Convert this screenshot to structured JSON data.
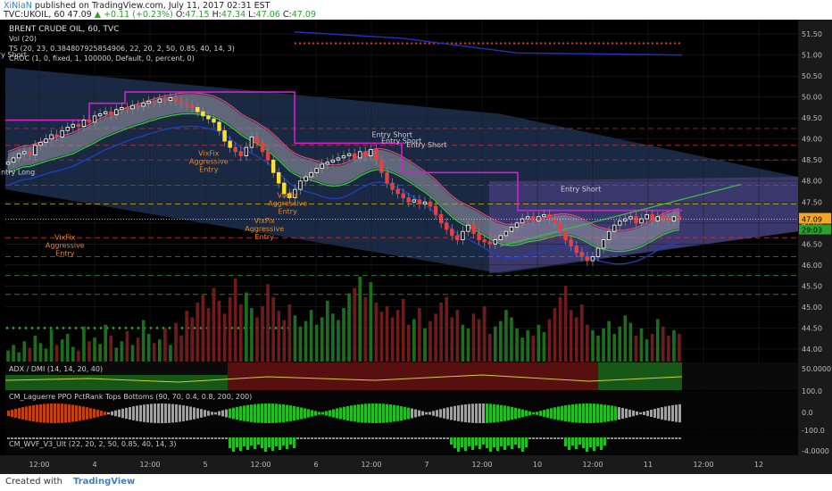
{
  "header": {
    "author": "XiNiaN",
    "published": "published on TradingView.com, July 11, 2017 02:31 EST",
    "symbol": "TVC:UKOIL, 60",
    "last": "47.09",
    "change": "▲ +0.11 (+0.23%)",
    "o_label": "O:",
    "o": "47.15",
    "h_label": "H:",
    "h": "47.34",
    "l_label": "L:",
    "l": "47.06",
    "c_label": "C:",
    "c": "47.09"
  },
  "legend": {
    "title": "BRENT CRUDE OIL, 60, TVC",
    "vol": "Vol (20)",
    "ts": "TS (20, 23, 0.38480792585490​6, 22, 20, 2, 50, 0.85, 40, 14, 3)",
    "croc": "CROC (1, 0, fixed, 1, 100000, Default, 0, percent, 0)"
  },
  "annotations": [
    {
      "text": "Entry Short",
      "x": "3 06:00",
      "y": 50.95,
      "color": "#d0d0d0"
    },
    {
      "text": "Entry Long",
      "x": "3 08:00",
      "y": 48.15,
      "color": "#d0d0d0"
    },
    {
      "text": "Entry Short",
      "x": "6 21:00",
      "y": 49.05,
      "color": "#d0d0d0"
    },
    {
      "text": "Entry Short",
      "x": "6 23:00",
      "y": 48.9,
      "color": "#d0d0d0"
    },
    {
      "text": "Entry Short",
      "x": "7 04:00",
      "y": 48.8,
      "color": "#d0d0d0"
    },
    {
      "text": "Entry Short",
      "x": "10 13:00",
      "y": 47.75,
      "color": "#d0d0d0"
    },
    {
      "text": "VixFix Aggressive Entry",
      "x": "5 04:00",
      "y": 48.6,
      "color": "#e8871e"
    },
    {
      "text": "VixFix Aggressive Entry",
      "x": "5 21:00",
      "y": 47.6,
      "color": "#e8871e"
    },
    {
      "text": "VixFix Aggressive Entry",
      "x": "5 16:00",
      "y": 47.0,
      "color": "#e8871e"
    },
    {
      "text": "VixFix Aggressive Entry",
      "x": "9 14:00",
      "y": 46.6,
      "color": "#e8871e"
    }
  ],
  "chart_data": {
    "type": "candlestick",
    "title": "BRENT CRUDE OIL, 60, TVC",
    "price_axis": {
      "ticks": [
        "51.50",
        "51.00",
        "50.50",
        "50.00",
        "49.50",
        "49.00",
        "48.50",
        "48.00",
        "47.50",
        "47.00",
        "46.50",
        "46.00",
        "45.50",
        "45.00",
        "44.50",
        "44.00"
      ],
      "ylim": [
        43.7,
        51.8
      ]
    },
    "current_price": "47.09",
    "countdown": "29:03",
    "time_axis": {
      "ticks": [
        "12:00",
        "4",
        "12:00",
        "5",
        "12:00",
        "6",
        "12:00",
        "7",
        "12:00",
        "10",
        "12:00",
        "11",
        "12:00",
        "12"
      ]
    },
    "series": [
      {
        "name": "close",
        "values": [
          48.45,
          48.55,
          48.65,
          48.7,
          48.62,
          48.85,
          48.92,
          49.0,
          49.1,
          49.05,
          49.2,
          49.28,
          49.35,
          49.3,
          49.45,
          49.4,
          49.55,
          49.6,
          49.65,
          49.58,
          49.7,
          49.75,
          49.72,
          49.8,
          49.78,
          49.85,
          49.9,
          49.88,
          49.95,
          49.92,
          49.98,
          49.9,
          49.85,
          49.8,
          49.75,
          49.65,
          49.55,
          49.48,
          49.4,
          49.2,
          48.95,
          48.8,
          48.7,
          48.6,
          48.8,
          49.05,
          48.9,
          48.7,
          48.5,
          48.2,
          47.95,
          47.7,
          47.6,
          47.8,
          48.0,
          48.1,
          48.2,
          48.3,
          48.4,
          48.45,
          48.5,
          48.55,
          48.6,
          48.65,
          48.55,
          48.7,
          48.6,
          48.75,
          48.5,
          48.2,
          47.95,
          47.8,
          47.7,
          47.6,
          47.5,
          47.55,
          47.45,
          47.5,
          47.4,
          47.2,
          47.0,
          46.85,
          46.7,
          46.6,
          46.8,
          46.95,
          46.75,
          46.6,
          46.55,
          46.5,
          46.6,
          46.7,
          46.8,
          46.9,
          47.0,
          47.1,
          47.15,
          47.05,
          47.15,
          47.2,
          47.1,
          47.0,
          46.8,
          46.6,
          46.45,
          46.3,
          46.2,
          46.1,
          46.2,
          46.4,
          46.6,
          46.8,
          46.95,
          47.05,
          47.1,
          47.15,
          47.0,
          47.1,
          47.2,
          47.05,
          47.15,
          47.1,
          47.05,
          47.15,
          47.09
        ]
      },
      {
        "name": "Vol (20)",
        "values": [
          12,
          18,
          10,
          22,
          15,
          28,
          20,
          14,
          35,
          18,
          24,
          30,
          16,
          12,
          38,
          22,
          26,
          19,
          40,
          28,
          15,
          22,
          33,
          18,
          26,
          45,
          30,
          20,
          24,
          36,
          18,
          42,
          28,
          55,
          48,
          64,
          72,
          58,
          80,
          66,
          52,
          70,
          90,
          62,
          75,
          58,
          48,
          60,
          84,
          70,
          55,
          45,
          62,
          50,
          38,
          44,
          56,
          40,
          48,
          66,
          52,
          45,
          58,
          74,
          80,
          92,
          70,
          86,
          64,
          54,
          60,
          48,
          56,
          68,
          40,
          46,
          58,
          36,
          44,
          52,
          64,
          70,
          48,
          56,
          40,
          36,
          52,
          46,
          60,
          30,
          38,
          44,
          56,
          48,
          36,
          26,
          34,
          28,
          40,
          32,
          46,
          58,
          70,
          82,
          56,
          48,
          62,
          40,
          34,
          28,
          36,
          44,
          30,
          38,
          50,
          42,
          28,
          36,
          24,
          30,
          46,
          38,
          28,
          34,
          30
        ]
      }
    ],
    "panes": [
      {
        "name": "ADX / DMI (14, 14, 20, 40)",
        "ticks": [
          "50.0000"
        ]
      },
      {
        "name": "CM_Laguerre PPO PctRank Tops Bottoms (90, 70, 0.4, 0.8, 200, 200)",
        "ticks": [
          "100.0",
          "0.0",
          "-100.0"
        ]
      },
      {
        "name": "CM_WVF_V3_Ult (22, 20, 2, 50, 0.85, 40, 14, 3)",
        "ticks": [
          "-4.0000"
        ]
      }
    ]
  },
  "footer": {
    "created": "Created with",
    "brand": "TradingView"
  }
}
